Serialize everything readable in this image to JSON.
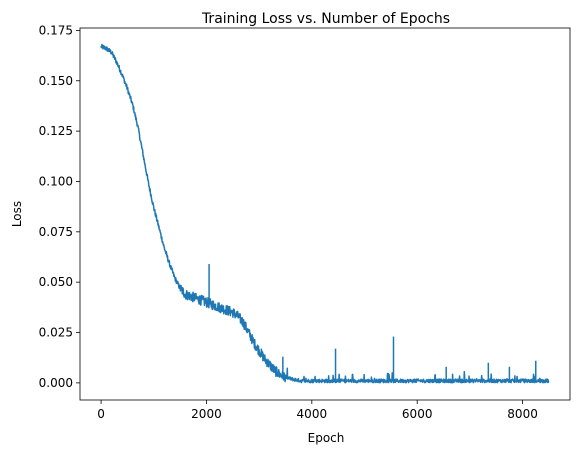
{
  "chart_data": {
    "type": "line",
    "title": "Training Loss vs. Number of Epochs",
    "xlabel": "Epoch",
    "ylabel": "Loss",
    "xlim": [
      -400,
      8900
    ],
    "ylim": [
      -0.0085,
      0.1762
    ],
    "x_ticks": [
      0,
      2000,
      4000,
      6000,
      8000
    ],
    "y_ticks": [
      0.0,
      0.025,
      0.05,
      0.075,
      0.1,
      0.125,
      0.15,
      0.175
    ],
    "x_tick_labels": [
      "0",
      "2000",
      "4000",
      "6000",
      "8000"
    ],
    "y_tick_labels": [
      "0.000",
      "0.025",
      "0.050",
      "0.075",
      "0.100",
      "0.125",
      "0.150",
      "0.175"
    ],
    "grid": false,
    "legend": "none",
    "series": [
      {
        "color": "#1f77b4",
        "x": [
          0,
          100,
          200,
          300,
          400,
          500,
          600,
          700,
          800,
          900,
          1000,
          1100,
          1200,
          1300,
          1400,
          1500,
          1600,
          1700,
          1800,
          1900,
          2000,
          2100,
          2200,
          2300,
          2400,
          2500,
          2600,
          2700,
          2800,
          2900,
          3000,
          3100,
          3200,
          3300,
          3400,
          3500,
          3600,
          3700,
          3800,
          3900,
          4000,
          4500,
          5000,
          5500,
          6000,
          6500,
          7000,
          7500,
          8000,
          8500
        ],
        "y": [
          0.167,
          0.166,
          0.164,
          0.159,
          0.153,
          0.146,
          0.138,
          0.127,
          0.113,
          0.099,
          0.087,
          0.077,
          0.067,
          0.059,
          0.052,
          0.047,
          0.044,
          0.043,
          0.042,
          0.041,
          0.04,
          0.039,
          0.038,
          0.037,
          0.036,
          0.035,
          0.033,
          0.03,
          0.025,
          0.02,
          0.016,
          0.012,
          0.009,
          0.006,
          0.004,
          0.003,
          0.002,
          0.0015,
          0.001,
          0.001,
          0.001,
          0.001,
          0.001,
          0.001,
          0.001,
          0.001,
          0.001,
          0.001,
          0.001,
          0.001
        ]
      }
    ],
    "spikes": [
      {
        "x": 2050,
        "y": 0.059
      },
      {
        "x": 3450,
        "y": 0.013
      },
      {
        "x": 4450,
        "y": 0.017
      },
      {
        "x": 5550,
        "y": 0.023
      },
      {
        "x": 6550,
        "y": 0.008
      },
      {
        "x": 7350,
        "y": 0.01
      },
      {
        "x": 7750,
        "y": 0.008
      },
      {
        "x": 8250,
        "y": 0.011
      }
    ]
  }
}
